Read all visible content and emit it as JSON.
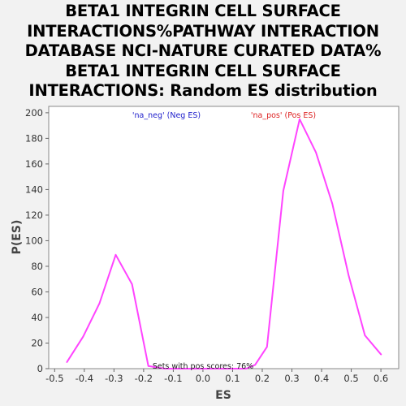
{
  "chart_data": {
    "type": "line",
    "title_lines": [
      "BETA1 INTEGRIN CELL SURFACE",
      "INTERACTIONS%PATHWAY INTERACTION",
      "DATABASE NCI-NATURE CURATED DATA%",
      "BETA1 INTEGRIN CELL SURFACE",
      "INTERACTIONS: Random ES distribution"
    ],
    "xlabel": "ES",
    "ylabel": "P(ES)",
    "xlim": [
      -0.52,
      0.66
    ],
    "ylim": [
      0,
      205
    ],
    "x_ticks": [
      "-0.5",
      "-0.4",
      "-0.3",
      "-0.2",
      "-0.1",
      "0.0",
      "0.1",
      "0.2",
      "0.3",
      "0.4",
      "0.5",
      "0.6"
    ],
    "y_ticks": [
      "0",
      "20",
      "40",
      "60",
      "80",
      "100",
      "120",
      "140",
      "160",
      "180",
      "200"
    ],
    "series": [
      {
        "color": "#ff44ff",
        "x": [
          -0.459,
          -0.404,
          -0.349,
          -0.294,
          -0.239,
          -0.184,
          -0.129,
          -0.074,
          -0.019,
          0.036,
          0.091,
          0.146,
          0.176,
          0.216,
          0.271,
          0.326,
          0.381,
          0.436,
          0.491,
          0.546,
          0.601
        ],
        "y": [
          5,
          25,
          51,
          89,
          66,
          2,
          0,
          0,
          0,
          0,
          0,
          0,
          3,
          17,
          139,
          195,
          169,
          129,
          73,
          26,
          11
        ]
      }
    ],
    "legend": [
      {
        "label": "'na_neg' (Neg ES)",
        "color": "#2222cc"
      },
      {
        "label": "'na_pos' (Pos ES)",
        "color": "#dd2222"
      }
    ],
    "annotation": "Sets with pos scores: 76%",
    "grid": false
  }
}
